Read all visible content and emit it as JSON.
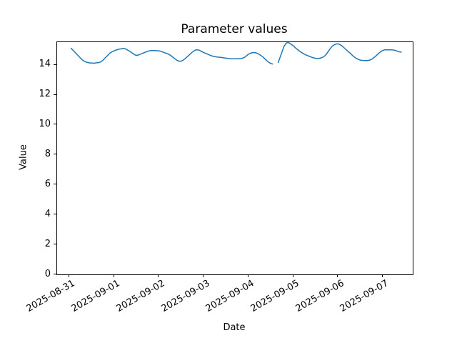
{
  "figure": {
    "background": "#ffffff"
  },
  "chart_data": {
    "type": "line",
    "title": "Parameter values",
    "xlabel": "Date",
    "ylabel": "Value",
    "line_color": "#1f77b4",
    "line_width": 1.5,
    "grid": false,
    "legend": "none",
    "ylim": [
      0,
      15.51
    ],
    "xlim_hours": [
      -6.5,
      184.1
    ],
    "yticks": [
      0,
      2,
      4,
      6,
      8,
      10,
      12,
      14
    ],
    "xticks": [
      {
        "hour": 0,
        "label": "2025-08-31"
      },
      {
        "hour": 24,
        "label": "2025-09-01"
      },
      {
        "hour": 48,
        "label": "2025-09-02"
      },
      {
        "hour": 72,
        "label": "2025-09-03"
      },
      {
        "hour": 96,
        "label": "2025-09-04"
      },
      {
        "hour": 120,
        "label": "2025-09-05"
      },
      {
        "hour": 144,
        "label": "2025-09-06"
      },
      {
        "hour": 168,
        "label": "2025-09-07"
      }
    ],
    "series": [
      {
        "name": "parameter",
        "start_hour": 1,
        "step_hours": 1,
        "note_gap": "null entries are missing samples around 2025-09-04 14:00-15:00",
        "values": [
          15.1,
          14.97,
          14.84,
          14.71,
          14.58,
          14.45,
          14.33,
          14.24,
          14.18,
          14.15,
          14.12,
          14.12,
          14.1,
          14.12,
          14.14,
          14.15,
          14.2,
          14.3,
          14.43,
          14.55,
          14.68,
          14.8,
          14.87,
          14.92,
          14.98,
          15.02,
          15.05,
          15.07,
          15.1,
          15.07,
          15.0,
          14.93,
          14.85,
          14.76,
          14.68,
          14.62,
          14.65,
          14.7,
          14.75,
          14.8,
          14.85,
          14.9,
          14.93,
          14.95,
          14.95,
          14.95,
          14.94,
          14.93,
          14.9,
          14.86,
          14.81,
          14.77,
          14.72,
          14.65,
          14.56,
          14.46,
          14.36,
          14.28,
          14.24,
          14.24,
          14.3,
          14.4,
          14.51,
          14.62,
          14.74,
          14.85,
          14.94,
          15.0,
          15.0,
          14.95,
          14.88,
          14.82,
          14.77,
          14.72,
          14.66,
          14.61,
          14.57,
          14.55,
          14.52,
          14.51,
          14.5,
          14.48,
          14.46,
          14.44,
          14.42,
          14.41,
          14.4,
          14.4,
          14.4,
          14.4,
          14.41,
          14.42,
          14.45,
          14.5,
          14.6,
          14.7,
          14.77,
          14.8,
          14.82,
          14.8,
          14.75,
          14.68,
          14.6,
          14.5,
          14.38,
          14.26,
          14.16,
          14.09,
          14.05,
          null,
          null,
          14.15,
          14.5,
          14.85,
          15.2,
          15.4,
          15.5,
          15.45,
          15.36,
          15.28,
          15.16,
          15.05,
          14.95,
          14.86,
          14.78,
          14.71,
          14.65,
          14.6,
          14.55,
          14.5,
          14.46,
          14.43,
          14.42,
          14.43,
          14.46,
          14.51,
          14.6,
          14.74,
          14.92,
          15.1,
          15.25,
          15.33,
          15.38,
          15.4,
          15.35,
          15.28,
          15.17,
          15.05,
          14.94,
          14.84,
          14.72,
          14.6,
          14.5,
          14.42,
          14.35,
          14.31,
          14.29,
          14.28,
          14.28,
          14.28,
          14.31,
          14.36,
          14.45,
          14.55,
          14.66,
          14.78,
          14.88,
          14.95,
          15.0,
          15.0,
          15.0,
          15.0,
          15.0,
          14.98,
          14.95,
          14.9,
          14.86,
          14.85
        ]
      }
    ]
  }
}
